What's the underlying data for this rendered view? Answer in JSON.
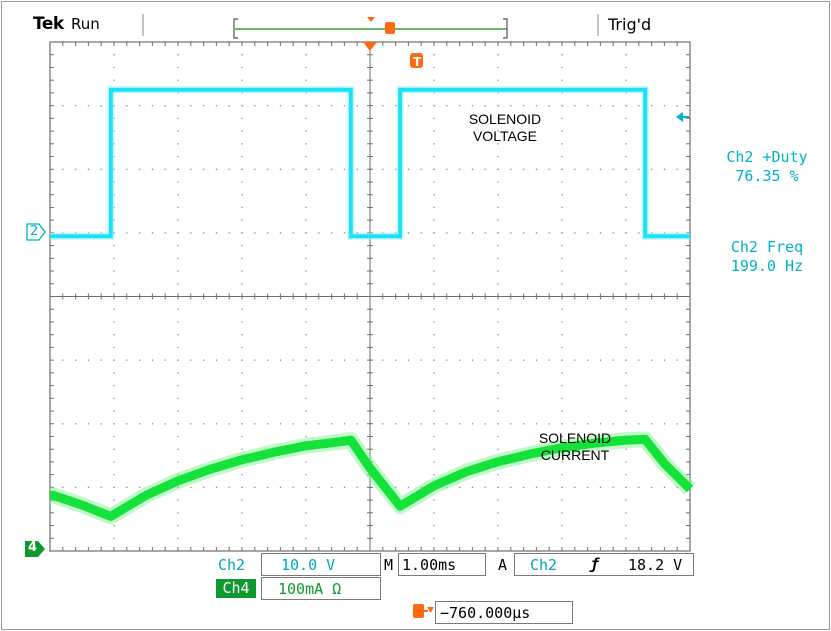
{
  "header": {
    "brand": "Tek",
    "status": "Run",
    "trigger_status": "Trig'd"
  },
  "measurements": [
    {
      "label": "Ch2 +Duty",
      "value": "76.35 %"
    },
    {
      "label": "Ch2 Freq",
      "value": "199.0 Hz"
    }
  ],
  "annotations": {
    "voltage": [
      "SOLENOID",
      "VOLTAGE"
    ],
    "current": [
      "SOLENOID",
      "CURRENT"
    ]
  },
  "markers": {
    "ch2": "2",
    "ch4": "4",
    "trigger": "T"
  },
  "readouts": {
    "ch2_label": "Ch2",
    "ch2_scale": "10.0 V",
    "ch4_label": "Ch4",
    "ch4_scale": "100mA Ω",
    "timebase_label": "M",
    "timebase": "1.00ms",
    "trig_label": "A",
    "trig_source": "Ch2",
    "trig_slope": "ƒ",
    "trig_level": "18.2 V",
    "trig_offset": "−760.000µs"
  },
  "colors": {
    "ch2": "#1ee1f5",
    "ch4": "#14e23a",
    "trigger": "#ff6a10",
    "grid": "#6e6e6e"
  },
  "chart_data": {
    "type": "line",
    "title": "",
    "xlabel": "",
    "ylabel": "",
    "x_unit": "ms",
    "x_per_division": 1.0,
    "xlim": [
      -5.0,
      5.0
    ],
    "series": [
      {
        "name": "Ch2",
        "volts_per_division": 10.0,
        "x": [
          -5.0,
          -4.05,
          -4.05,
          -0.3,
          -0.3,
          0.47,
          0.47,
          4.3,
          4.3,
          5.0
        ],
        "y": [
          -0.05,
          -0.05,
          2.25,
          2.25,
          -0.05,
          -0.05,
          2.25,
          2.25,
          -0.05,
          -0.05
        ]
      },
      {
        "name": "Ch4",
        "amps_per_division": 0.1,
        "x": [
          -5.0,
          -4.95,
          -4.5,
          -4.05,
          -3.5,
          -3.0,
          -2.5,
          -2.0,
          -1.5,
          -1.0,
          -0.5,
          -0.3,
          0.0,
          0.3,
          0.47,
          1.0,
          1.5,
          2.0,
          2.5,
          3.0,
          3.5,
          4.0,
          4.3,
          4.6,
          5.0
        ],
        "y": [
          -2.05,
          -2.05,
          -2.2,
          -2.38,
          -2.05,
          -1.82,
          -1.64,
          -1.49,
          -1.37,
          -1.27,
          -1.21,
          -1.18,
          -1.62,
          -2.0,
          -2.22,
          -1.9,
          -1.68,
          -1.52,
          -1.4,
          -1.3,
          -1.23,
          -1.18,
          -1.17,
          -1.55,
          -1.95
        ]
      }
    ]
  }
}
